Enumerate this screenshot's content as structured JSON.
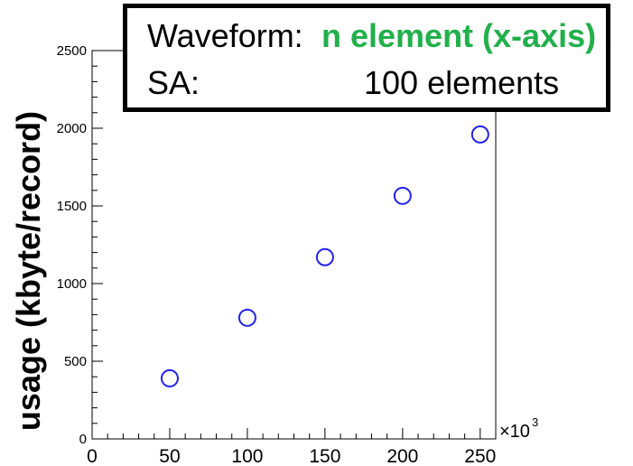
{
  "chart_data": {
    "type": "scatter",
    "ylabel": "usage (kbyte/record)",
    "x_exponent_label": "×10",
    "x_exponent_power": "3",
    "xlim": [
      0,
      260
    ],
    "ylim": [
      0,
      2500
    ],
    "x_ticks": [
      0,
      50,
      100,
      150,
      200,
      250
    ],
    "y_ticks": [
      0,
      500,
      1000,
      1500,
      2000,
      2500
    ],
    "series": [
      {
        "points": [
          [
            50,
            390
          ],
          [
            100,
            780
          ],
          [
            150,
            1170
          ],
          [
            200,
            1565
          ],
          [
            250,
            1960
          ]
        ]
      }
    ],
    "marker": "open-circle",
    "marker_color": "#2222ee"
  },
  "legend": {
    "rows": [
      {
        "label": "Waveform:",
        "value": "n element (x-axis)",
        "value_color": "#21b04b"
      },
      {
        "label": "SA:",
        "value": "100 elements"
      }
    ]
  }
}
